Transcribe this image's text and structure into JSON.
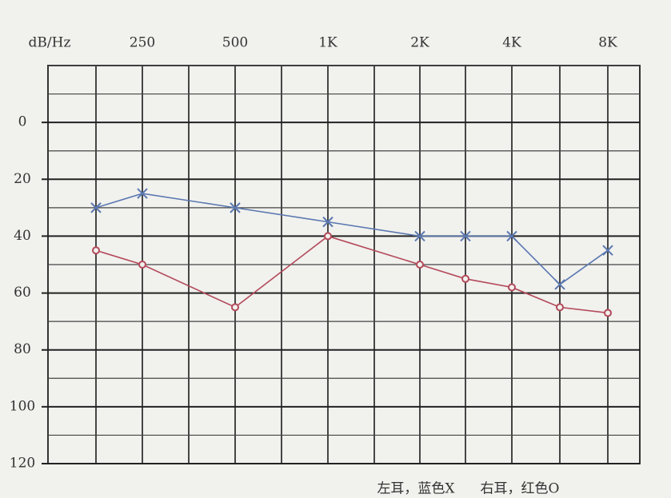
{
  "chart_data": {
    "type": "line",
    "axis_label": "dB/Hz",
    "categories": [
      null,
      "250",
      "500",
      "1K",
      "2K",
      null,
      "4K",
      null,
      "8K"
    ],
    "series": [
      {
        "name": "左耳，蓝色X",
        "color": "#5b78b0",
        "marker": "x",
        "values": [
          30,
          25,
          30,
          35,
          40,
          40,
          40,
          57,
          45
        ]
      },
      {
        "name": "右耳，红色O",
        "color": "#b34a5a",
        "marker": "o",
        "values": [
          45,
          50,
          65,
          40,
          50,
          55,
          58,
          65,
          67
        ]
      }
    ],
    "ylim": [
      -20,
      120
    ],
    "y_inverted": true,
    "yticks": [
      0,
      20,
      40,
      60,
      80,
      100,
      120
    ],
    "yminorticks": [
      -20,
      -10,
      10,
      30,
      50,
      70,
      90,
      110
    ],
    "grid": true,
    "legend": "bottom"
  }
}
